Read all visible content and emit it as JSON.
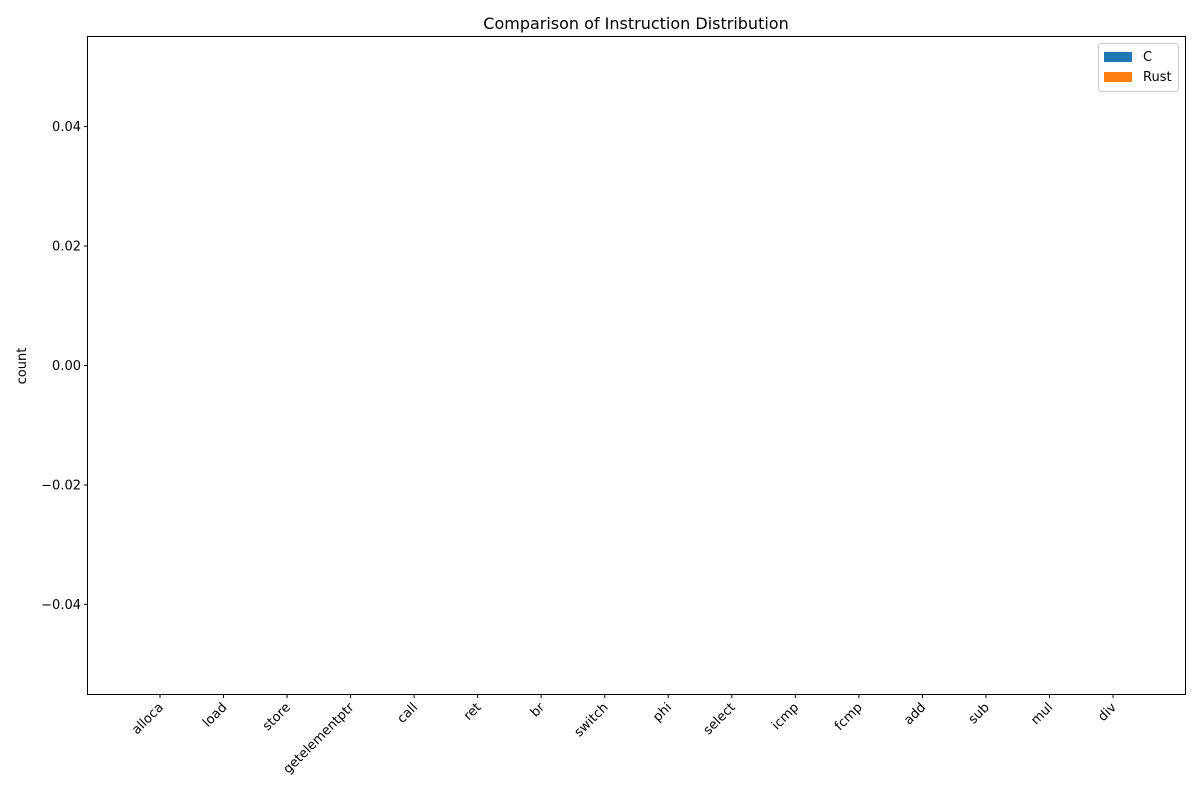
{
  "chart_data": {
    "type": "bar",
    "title": "Comparison of Instruction Distribution",
    "xlabel": "",
    "ylabel": "count",
    "categories": [
      "alloca",
      "load",
      "store",
      "getelementptr",
      "call",
      "ret",
      "br",
      "switch",
      "phi",
      "select",
      "icmp",
      "fcmp",
      "add",
      "sub",
      "mul",
      "div"
    ],
    "series": [
      {
        "name": "C",
        "color": "#1f77b4",
        "values": [
          0,
          0,
          0,
          0,
          0,
          0,
          0,
          0,
          0,
          0,
          0,
          0,
          0,
          0,
          0,
          0
        ]
      },
      {
        "name": "Rust",
        "color": "#ff7f0e",
        "values": [
          0,
          0,
          0,
          0,
          0,
          0,
          0,
          0,
          0,
          0,
          0,
          0,
          0,
          0,
          0,
          0
        ]
      }
    ],
    "ylim": [
      -0.055,
      0.055
    ],
    "yticks": [
      -0.04,
      -0.02,
      0.0,
      0.02,
      0.04
    ],
    "ytick_labels": [
      "−0.04",
      "−0.02",
      "0.00",
      "0.02",
      "0.04"
    ],
    "grid": false,
    "legend_position": "top-right"
  }
}
